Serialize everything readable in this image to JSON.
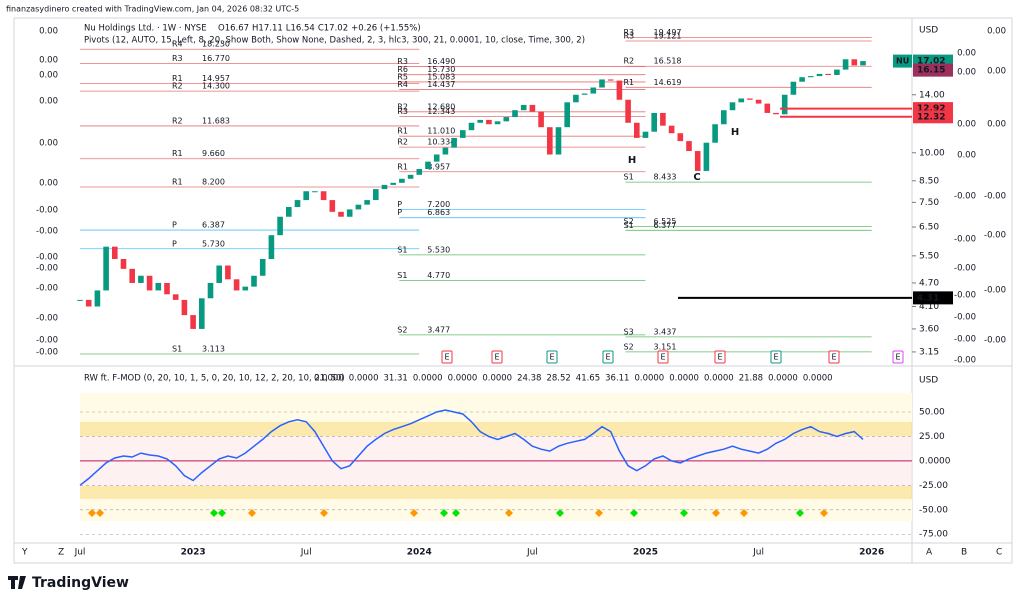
{
  "header": {
    "credit": "finanzasydinero created with TradingView.com, Jan 04, 2026 08:32 UTC-5",
    "brand": "TradingView",
    "corner_left": [
      "Y",
      "Z"
    ],
    "corner_right": [
      "A",
      "B",
      "C"
    ]
  },
  "chart_data": {
    "type": "candlestick",
    "title": "Nu Holdings Ltd. · 1W · NYSE",
    "quote": [
      "O16.67",
      "H17.11",
      "L16.54",
      "C17.02",
      "+0.26 (+1.55%)"
    ],
    "pivots_title": "Pivots (12, AUTO, 15, Left, 8, 20, Show Both, Show None, Dashed, 2, 3, hlc3, 300, 21, 0.0001, 10, close, Time, 300, 2)",
    "categories": [
      "Jul",
      null,
      null,
      null,
      null,
      null,
      null,
      null,
      null,
      null,
      null,
      null,
      null,
      "2023",
      null,
      null,
      null,
      null,
      null,
      null,
      null,
      null,
      null,
      null,
      null,
      null,
      "Jul",
      null,
      null,
      null,
      null,
      null,
      null,
      null,
      null,
      null,
      null,
      null,
      null,
      "2024",
      null,
      null,
      null,
      null,
      null,
      null,
      null,
      null,
      null,
      null,
      null,
      null,
      "Jul",
      null,
      null,
      null,
      null,
      null,
      null,
      null,
      null,
      null,
      null,
      null,
      null,
      "2025",
      null,
      null,
      null,
      null,
      null,
      null,
      null,
      null,
      null,
      null,
      null,
      null,
      "Jul",
      null,
      null,
      null,
      null,
      null,
      null,
      null,
      null,
      null,
      null,
      null,
      null,
      "2026"
    ],
    "values": [
      4.26,
      4.1,
      4.5,
      5.8,
      5.4,
      5.1,
      4.7,
      4.9,
      4.5,
      4.7,
      4.4,
      4.26,
      3.9,
      3.6,
      4.3,
      4.7,
      5.2,
      4.8,
      4.5,
      4.6,
      4.9,
      5.4,
      6.2,
      6.9,
      7.3,
      7.6,
      8.0,
      8.0,
      7.6,
      7.1,
      6.9,
      7.2,
      7.4,
      7.6,
      8.1,
      8.3,
      8.4,
      8.6,
      8.8,
      9.1,
      9.5,
      9.9,
      10.3,
      10.9,
      11.4,
      11.9,
      12.1,
      11.8,
      12.0,
      12.3,
      12.8,
      13.2,
      12.7,
      11.6,
      9.9,
      11.6,
      13.4,
      14.0,
      14.1,
      14.6,
      15.3,
      15.2,
      13.6,
      11.9,
      10.9,
      11.3,
      12.6,
      11.7,
      11.2,
      10.7,
      10.1,
      9.0,
      10.6,
      11.8,
      12.8,
      13.4,
      13.7,
      13.6,
      13.3,
      12.6,
      12.5,
      14.0,
      15.1,
      15.5,
      15.6,
      15.8,
      15.7,
      16.2,
      17.2,
      16.6,
      17.02,
      null
    ],
    "color_up": "#089981",
    "color_down": "#f23645",
    "log_scale": true,
    "ylim": [
      2.92,
      21.6
    ],
    "y_axis_unit": "USD",
    "yticks": [
      {
        "value": 14,
        "label": "14.00"
      },
      {
        "value": 10,
        "label": "10.00"
      },
      {
        "value": 8.5,
        "label": "8.50"
      },
      {
        "value": 7.5,
        "label": "7.50"
      },
      {
        "value": 6.5,
        "label": "6.50"
      },
      {
        "value": 5.5,
        "label": "5.50"
      },
      {
        "value": 4.7,
        "label": "4.70"
      },
      {
        "value": 4.1,
        "label": "4.10"
      },
      {
        "value": 3.6,
        "label": "3.60"
      },
      {
        "value": 3.15,
        "label": "3.15"
      }
    ],
    "symbol_tag": "NU",
    "price_tags": [
      {
        "value": 17.02,
        "color": "#089981"
      },
      {
        "value": 16.15,
        "color": "#9c2f5c"
      },
      {
        "value": 12.92,
        "color": "#f23645"
      },
      {
        "value": 12.32,
        "color": "#f23645"
      },
      {
        "value": 4.31,
        "color": "#000000"
      }
    ],
    "pivots": [
      {
        "levels": [
          {
            "name": "R4",
            "value": 18.23,
            "label": "18.230"
          },
          {
            "name": "R3",
            "value": 16.77,
            "label": "16.770"
          },
          {
            "name": "R1",
            "value": 14.957,
            "label": "14.957"
          },
          {
            "name": "R2",
            "value": 14.3,
            "label": "14.300"
          },
          {
            "name": "R2",
            "value": 11.683,
            "label": "11.683"
          },
          {
            "name": "R1",
            "value": 9.66,
            "label": "9.660"
          },
          {
            "name": "R1",
            "value": 8.2,
            "label": "8.200"
          },
          {
            "name": "P",
            "value": 6.387,
            "label": "6.387"
          },
          {
            "name": "P",
            "value": 5.73,
            "label": "5.730"
          },
          {
            "name": "S1",
            "value": 3.113,
            "label": "3.113"
          }
        ]
      },
      {
        "levels": [
          {
            "name": "R3",
            "value": 16.49,
            "label": "16.490"
          },
          {
            "name": "R6",
            "value": 15.73,
            "label": "15.730"
          },
          {
            "name": "R5",
            "value": 15.083,
            "label": "15.083"
          },
          {
            "name": "R4",
            "value": 14.437,
            "label": "14.437"
          },
          {
            "name": "R2",
            "value": 12.68,
            "label": "12.680"
          },
          {
            "name": "R3",
            "value": 12.343,
            "label": "12.343"
          },
          {
            "name": "R1",
            "value": 11.01,
            "label": "11.010"
          },
          {
            "name": "R2",
            "value": 10.334,
            "label": "10.334"
          },
          {
            "name": "R1",
            "value": 8.957,
            "label": "8.957"
          },
          {
            "name": "P",
            "value": 7.2,
            "label": "7.200"
          },
          {
            "name": "P",
            "value": 6.863,
            "label": "6.863"
          },
          {
            "name": "S1",
            "value": 5.53,
            "label": "5.530"
          },
          {
            "name": "S1",
            "value": 4.77,
            "label": "4.770"
          },
          {
            "name": "S2",
            "value": 3.477,
            "label": "3.477"
          }
        ]
      },
      {
        "levels": [
          {
            "name": "R3",
            "value": 19.497,
            "label": "19.497"
          },
          {
            "name": "R3",
            "value": 19.121,
            "label": "19.121"
          },
          {
            "name": "R2",
            "value": 16.518,
            "label": "16.518"
          },
          {
            "name": "R1",
            "value": 14.619,
            "label": "14.619"
          },
          {
            "name": "S1",
            "value": 8.433,
            "label": "8.433"
          },
          {
            "name": "S2",
            "value": 6.525,
            "label": "6.525"
          },
          {
            "name": "S1",
            "value": 6.377,
            "label": "6.377"
          },
          {
            "name": "S3",
            "value": 3.437,
            "label": "3.437"
          },
          {
            "name": "S2",
            "value": 3.151,
            "label": "3.151"
          }
        ]
      }
    ],
    "annotations": [
      "H",
      "H",
      "C"
    ],
    "events": [
      {
        "label": "E",
        "color": "#f23645"
      },
      {
        "label": "E",
        "color": "#f23645"
      },
      {
        "label": "E",
        "color": "#089981"
      },
      {
        "label": "E",
        "color": "#089981"
      },
      {
        "label": "E",
        "color": "#f23645"
      },
      {
        "label": "E",
        "color": "#f23645"
      },
      {
        "label": "E",
        "color": "#089981"
      },
      {
        "label": "E",
        "color": "#f23645"
      },
      {
        "label": "E",
        "color": "#e040fb"
      }
    ]
  },
  "indicator": {
    "type": "line",
    "title": "RW ft. F-MOD (0, 20, 10, 1, 5, 0, 20, 10, 12, 2, 20, 10, 21, 50)",
    "legend_values": [
      {
        "text": "0.0000",
        "color": "#ff9800"
      },
      {
        "text": "0.0000",
        "color": "#4caf50"
      },
      {
        "text": "31.31",
        "color": "#9c27b0"
      },
      {
        "text": "0.0000",
        "color": "#e040fb"
      },
      {
        "text": "0.0000",
        "color": "#e91e63"
      },
      {
        "text": "0.0000",
        "color": "#2962ff"
      },
      {
        "text": "24.38",
        "color": "#4caf50"
      },
      {
        "text": "28.52",
        "color": "#e91e63"
      },
      {
        "text": "41.65",
        "color": "#ab47bc"
      },
      {
        "text": "36.11",
        "color": "#ff9800"
      },
      {
        "text": "0.0000",
        "color": "#f23645"
      },
      {
        "text": "0.0000",
        "color": "#2962ff"
      },
      {
        "text": "0.0000",
        "color": "#2962ff"
      },
      {
        "text": "21.88",
        "color": "#2962ff"
      },
      {
        "text": "0.0000",
        "color": "#e91e63"
      },
      {
        "text": "0.0000",
        "color": "#e91e63"
      }
    ],
    "ylim": [
      -86,
      95
    ],
    "y_axis_unit": "USD",
    "yticks": [
      {
        "value": 50,
        "label": "50.00"
      },
      {
        "value": 25,
        "label": "25.00"
      },
      {
        "value": 0,
        "label": "0.0000"
      },
      {
        "value": -25,
        "label": "-25.00"
      },
      {
        "value": -50,
        "label": "-50.00"
      },
      {
        "value": -75,
        "label": "-75.00"
      }
    ],
    "series": [
      {
        "color": "#2962ff",
        "values": [
          -25,
          -18,
          -10,
          -2,
          3,
          5,
          4,
          8,
          6,
          5,
          2,
          -5,
          -15,
          -20,
          -12,
          -5,
          2,
          5,
          3,
          8,
          15,
          22,
          30,
          36,
          40,
          42,
          40,
          30,
          15,
          0,
          -8,
          -5,
          5,
          15,
          22,
          28,
          32,
          35,
          38,
          42,
          46,
          50,
          52,
          50,
          48,
          40,
          30,
          25,
          22,
          25,
          28,
          22,
          15,
          12,
          10,
          15,
          18,
          20,
          22,
          28,
          35,
          30,
          10,
          -5,
          -10,
          -5,
          2,
          5,
          0,
          -2,
          2,
          5,
          8,
          10,
          12,
          15,
          12,
          10,
          8,
          12,
          18,
          22,
          28,
          32,
          35,
          30,
          28,
          25,
          28,
          30,
          22,
          null
        ]
      }
    ]
  },
  "overlay_labels": {
    "left": [
      "0.00",
      "0.00",
      "0.00",
      "0.00",
      "0.00",
      "0.00",
      "-0.00",
      "-0.00",
      "-0.00",
      "-0.00",
      "-0.00",
      "-0.00",
      "-0.00",
      "-0.00"
    ],
    "right1": [
      "0.00",
      "0.00",
      "0.00",
      "0.00",
      "-0.00",
      "-0.00",
      "-0.00",
      "-0.00",
      "-0.00",
      "-0.00",
      "-0.00"
    ],
    "right2": [
      "0.00",
      "0.00",
      "0.00",
      "-0.00",
      "-0.00",
      "-0.00",
      "-0.00"
    ]
  }
}
